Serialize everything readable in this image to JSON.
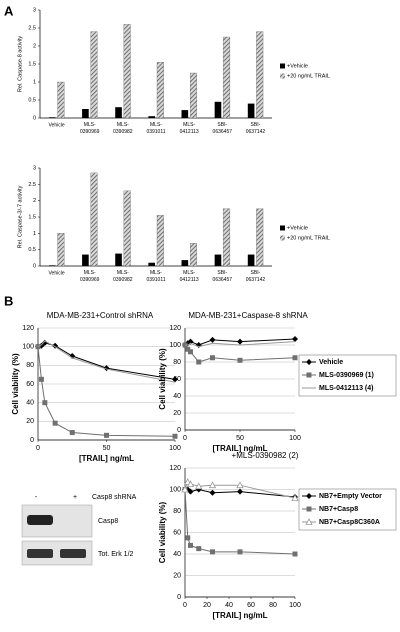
{
  "panel_labels": [
    "A",
    "B"
  ],
  "chart_data": [
    {
      "type": "bar",
      "ylabel": "Rel. Caspase-8 activity",
      "categories": [
        "Vehicle",
        "MLS-0390969",
        "MLS-0390982",
        "MLS-0391011",
        "MLS-0412113",
        "SBI-0636457",
        "SBI-0637142"
      ],
      "series": [
        {
          "name": "+Vehicle",
          "color": "#000000",
          "values": [
            0.02,
            0.25,
            0.3,
            0.05,
            0.22,
            0.45,
            0.4
          ]
        },
        {
          "name": "+20 ng/mL TRAIL",
          "color": "#8c8c8c",
          "pattern": "hatch",
          "values": [
            1.0,
            2.4,
            2.6,
            1.55,
            1.25,
            2.25,
            2.4
          ]
        }
      ],
      "ylim": [
        0,
        3
      ],
      "yticks": [
        0,
        0.5,
        1,
        1.5,
        2,
        2.5,
        3
      ],
      "grid": false
    },
    {
      "type": "bar",
      "ylabel": "Rel. Caspase-3/-7 activity",
      "categories": [
        "Vehicle",
        "MLS-0390969",
        "MLS-0390982",
        "MLS-0391011",
        "MLS-0412113",
        "SBI-0636457",
        "SBI-0637142"
      ],
      "series": [
        {
          "name": "+Vehicle",
          "color": "#000000",
          "values": [
            0.02,
            0.35,
            0.38,
            0.1,
            0.18,
            0.35,
            0.35
          ]
        },
        {
          "name": "+20 ng/mL TRAIL",
          "color": "#8c8c8c",
          "pattern": "hatch",
          "values": [
            1.0,
            2.85,
            2.3,
            1.55,
            0.7,
            1.75,
            1.75
          ]
        }
      ],
      "ylim": [
        0,
        3
      ],
      "yticks": [
        0,
        0.5,
        1,
        1.5,
        2,
        2.5,
        3
      ],
      "grid": false
    },
    {
      "type": "line",
      "title": "MDA-MB-231+Control shRNA",
      "xlabel": "[TRAIL] ng/mL",
      "ylabel": "Cell viability (%)",
      "x": [
        0,
        2.5,
        5,
        12.5,
        25,
        50,
        100
      ],
      "series": [
        {
          "name": "Vehicle",
          "color": "#000000",
          "marker": "diamond",
          "values": [
            100,
            101,
            104,
            101,
            90,
            77,
            65
          ]
        },
        {
          "name": "MLS-0390969 (1)",
          "color": "#707070",
          "marker": "square",
          "values": [
            100,
            65,
            40,
            18,
            8,
            5,
            4
          ]
        },
        {
          "name": "MLS-0412113 (4)",
          "color": "#9a9a9a",
          "marker": "none",
          "values": [
            100,
            102,
            106,
            100,
            88,
            76,
            62
          ]
        }
      ],
      "xlim": [
        0,
        100
      ],
      "xticks": [
        0,
        50,
        100
      ],
      "ylim": [
        0,
        120
      ],
      "yticks": [
        0,
        20,
        40,
        60,
        80,
        100,
        120
      ],
      "grid": true,
      "legend": false
    },
    {
      "type": "line",
      "title": "MDA-MB-231+Caspase-8 shRNA",
      "xlabel": "[TRAIL] ng/mL",
      "ylabel": "Cell viability (%)",
      "x": [
        0,
        2.5,
        5,
        12.5,
        25,
        50,
        100
      ],
      "series": [
        {
          "name": "Vehicle",
          "color": "#000000",
          "marker": "diamond",
          "values": [
            100,
            102,
            104,
            100,
            106,
            104,
            107
          ]
        },
        {
          "name": "MLS-0390969 (1)",
          "color": "#707070",
          "marker": "square",
          "values": [
            100,
            95,
            92,
            80,
            85,
            82,
            85
          ]
        },
        {
          "name": "MLS-0412113 (4)",
          "color": "#9a9a9a",
          "marker": "none",
          "values": [
            100,
            100,
            102,
            98,
            102,
            100,
            104
          ]
        }
      ],
      "xlim": [
        0,
        100
      ],
      "xticks": [
        0,
        50,
        100
      ],
      "ylim": [
        0,
        120
      ],
      "yticks": [
        0,
        20,
        40,
        60,
        80,
        100,
        120
      ],
      "grid": true,
      "legend": true
    },
    {
      "type": "line",
      "title": "+MLS-0390982 (2)",
      "xlabel": "[TRAIL] ng/mL",
      "ylabel": "Cell viability (%)",
      "x": [
        0,
        2.5,
        5,
        12.5,
        25,
        50,
        100
      ],
      "series": [
        {
          "name": "NB7+Empty Vector",
          "color": "#000000",
          "marker": "diamond",
          "values": [
            100,
            100,
            98,
            100,
            97,
            98,
            93
          ]
        },
        {
          "name": "NB7+Casp8",
          "color": "#707070",
          "marker": "square",
          "values": [
            100,
            55,
            48,
            45,
            42,
            42,
            40
          ]
        },
        {
          "name": "NB7+Casp8C360A",
          "color": "#9a9a9a",
          "marker": "triangle",
          "values": [
            100,
            107,
            105,
            103,
            104,
            104,
            92
          ]
        }
      ],
      "xlim": [
        0,
        100
      ],
      "xticks": [
        0,
        20,
        40,
        60,
        80,
        100
      ],
      "ylim": [
        0,
        120
      ],
      "yticks": [
        0,
        20,
        40,
        60,
        80,
        100,
        120
      ],
      "grid": true,
      "legend": true
    }
  ],
  "blot": {
    "lanes": [
      "-",
      "+"
    ],
    "treatment": "Casp8 shRNA",
    "bands": [
      "Casp8",
      "Tot. Erk 1/2"
    ]
  }
}
